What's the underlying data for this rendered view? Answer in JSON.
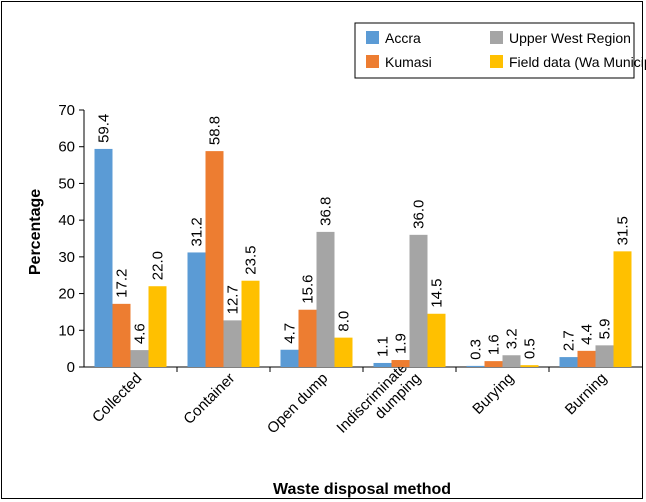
{
  "chart_data": {
    "type": "bar",
    "xlabel": "Waste disposal method",
    "ylabel": "Percentage",
    "ylim": [
      0,
      70
    ],
    "yticks": [
      0,
      10,
      20,
      30,
      40,
      50,
      60,
      70
    ],
    "grid": false,
    "legend_position": "top-right",
    "categories": [
      "Collected",
      "Container",
      "Open dump",
      "Indiscriminate\ndumping",
      "Burying",
      "Burning"
    ],
    "series": [
      {
        "name": "Accra",
        "color": "#5B9BD5",
        "values": [
          59.4,
          31.2,
          4.7,
          1.1,
          0.3,
          2.7
        ],
        "labels": [
          "59.4",
          "31.2",
          "4.7",
          "1.1",
          "0.3",
          "2.7"
        ]
      },
      {
        "name": "Kumasi",
        "color": "#ED7D31",
        "values": [
          17.2,
          58.8,
          15.6,
          1.9,
          1.6,
          4.4
        ],
        "labels": [
          "17.2",
          "58.8",
          "15.6",
          "1.9",
          "1.6",
          "4.4"
        ]
      },
      {
        "name": "Upper West Region",
        "color": "#A5A5A5",
        "values": [
          4.6,
          12.7,
          36.8,
          36.0,
          3.2,
          5.9
        ],
        "labels": [
          "4.6",
          "12.7",
          "36.8",
          "36.0",
          "3.2",
          "5.9"
        ]
      },
      {
        "name": "Field data (Wa Municipal)",
        "color": "#FFC000",
        "values": [
          22.0,
          23.5,
          8.0,
          14.5,
          0.5,
          31.5
        ],
        "labels": [
          "22.0",
          "23.5",
          "8.0",
          "14.5",
          "0.5",
          "31.5"
        ]
      }
    ]
  }
}
